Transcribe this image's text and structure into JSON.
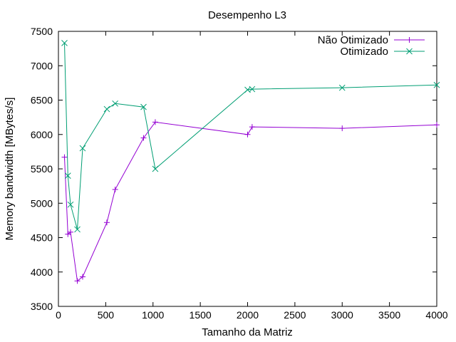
{
  "chart_data": {
    "type": "line",
    "title": "Desempenho L3",
    "xlabel": "Tamanho da Matriz",
    "ylabel": "Memory bandwidth [MBytes/s]",
    "xlim": [
      0,
      4000
    ],
    "ylim": [
      3500,
      7500
    ],
    "xticks": [
      0,
      500,
      1000,
      1500,
      2000,
      2500,
      3000,
      3500,
      4000
    ],
    "yticks": [
      3500,
      4000,
      4500,
      5000,
      5500,
      6000,
      6500,
      7000,
      7500
    ],
    "grid": false,
    "legend_position": "top-right",
    "series": [
      {
        "name": "Não Otimizado",
        "color": "#9400d3",
        "marker": "plus",
        "points": [
          [
            64,
            5670
          ],
          [
            100,
            4550
          ],
          [
            128,
            4580
          ],
          [
            200,
            3870
          ],
          [
            256,
            3930
          ],
          [
            512,
            4720
          ],
          [
            600,
            5200
          ],
          [
            900,
            5950
          ],
          [
            1024,
            6180
          ],
          [
            2000,
            6000
          ],
          [
            2048,
            6110
          ],
          [
            3000,
            6090
          ],
          [
            4000,
            6140
          ]
        ]
      },
      {
        "name": "Otimizado",
        "color": "#009e73",
        "marker": "cross",
        "points": [
          [
            64,
            7330
          ],
          [
            100,
            5400
          ],
          [
            128,
            4980
          ],
          [
            200,
            4620
          ],
          [
            256,
            5800
          ],
          [
            512,
            6370
          ],
          [
            600,
            6450
          ],
          [
            900,
            6400
          ],
          [
            1024,
            5500
          ],
          [
            2000,
            6650
          ],
          [
            2048,
            6660
          ],
          [
            3000,
            6680
          ],
          [
            4000,
            6720
          ]
        ]
      }
    ]
  }
}
